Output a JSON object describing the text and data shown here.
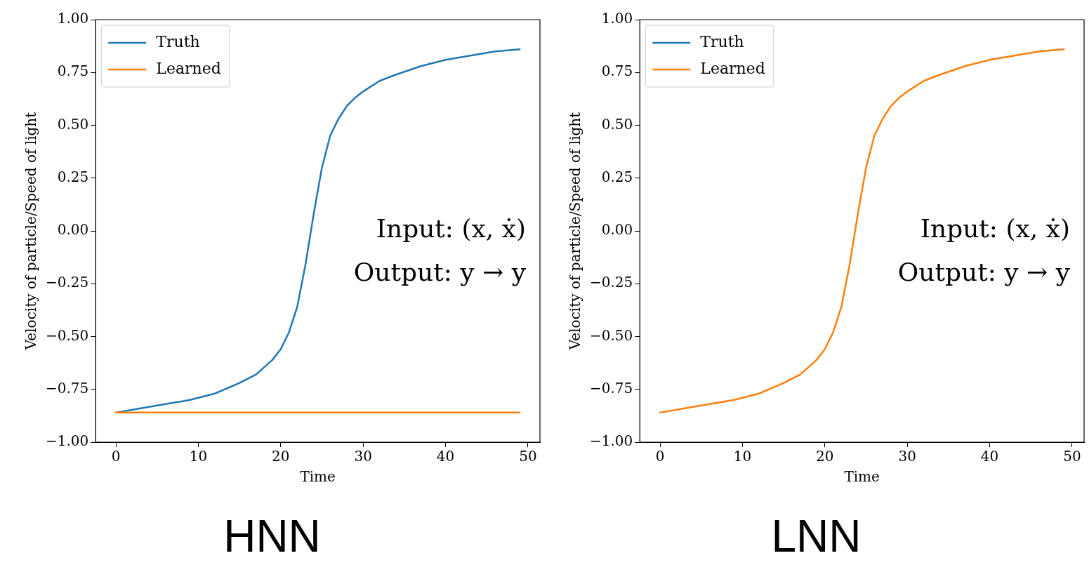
{
  "chart_data": [
    {
      "type": "line",
      "title": "HNN",
      "xlabel": "Time",
      "ylabel": "Velocity of particle/Speed of light",
      "annotations": [
        "Input: (x, ẋ)",
        "Output: y → y"
      ],
      "legend": "top left",
      "grid": false,
      "xlim": [
        -2.45,
        51.45
      ],
      "ylim": [
        -1,
        1
      ],
      "xticks": [
        0,
        10,
        20,
        30,
        40,
        50
      ],
      "yticks": [
        {
          "value": -1,
          "label": "−1.00"
        },
        {
          "value": -0.75,
          "label": "−0.75"
        },
        {
          "value": -0.5,
          "label": "−0.50"
        },
        {
          "value": -0.25,
          "label": "−0.25"
        },
        {
          "value": 0,
          "label": "0.00"
        },
        {
          "value": 0.25,
          "label": "0.25"
        },
        {
          "value": 0.5,
          "label": "0.50"
        },
        {
          "value": 0.75,
          "label": "0.75"
        },
        {
          "value": 1,
          "label": "1.00"
        }
      ],
      "series": [
        {
          "name": "Truth",
          "color": "#1f77b4",
          "x": [
            0,
            3,
            6,
            9,
            12,
            15,
            17,
            19,
            20,
            21,
            22,
            23,
            24,
            25,
            26,
            27,
            28,
            29,
            30,
            32,
            34,
            37,
            40,
            43,
            46,
            49
          ],
          "values": [
            -0.86,
            -0.84,
            -0.82,
            -0.8,
            -0.77,
            -0.72,
            -0.68,
            -0.61,
            -0.56,
            -0.48,
            -0.36,
            -0.16,
            0.08,
            0.3,
            0.45,
            0.53,
            0.59,
            0.63,
            0.66,
            0.71,
            0.74,
            0.78,
            0.81,
            0.83,
            0.85,
            0.86
          ]
        },
        {
          "name": "Learned",
          "color": "#ff7f0e",
          "x": [
            0,
            49
          ],
          "values": [
            -0.86,
            -0.86
          ]
        }
      ]
    },
    {
      "type": "line",
      "title": "LNN",
      "xlabel": "Time",
      "ylabel": "Velocity of particle/Speed of light",
      "annotations": [
        "Input: (x, ẋ)",
        "Output: y → y"
      ],
      "legend": "top left",
      "grid": false,
      "xlim": [
        -2.45,
        51.45
      ],
      "ylim": [
        -1,
        1
      ],
      "xticks": [
        0,
        10,
        20,
        30,
        40,
        50
      ],
      "yticks": [
        {
          "value": -1,
          "label": "−1.00"
        },
        {
          "value": -0.75,
          "label": "−0.75"
        },
        {
          "value": -0.5,
          "label": "−0.50"
        },
        {
          "value": -0.25,
          "label": "−0.25"
        },
        {
          "value": 0,
          "label": "0.00"
        },
        {
          "value": 0.25,
          "label": "0.25"
        },
        {
          "value": 0.5,
          "label": "0.50"
        },
        {
          "value": 0.75,
          "label": "0.75"
        },
        {
          "value": 1,
          "label": "1.00"
        }
      ],
      "series": [
        {
          "name": "Truth",
          "color": "#1f77b4"
        },
        {
          "name": "Learned",
          "color": "#ff7f0e",
          "x": [
            0,
            3,
            6,
            9,
            12,
            15,
            17,
            19,
            20,
            21,
            22,
            23,
            24,
            25,
            26,
            27,
            28,
            29,
            30,
            32,
            34,
            37,
            40,
            43,
            46,
            49
          ],
          "values": [
            -0.86,
            -0.84,
            -0.82,
            -0.8,
            -0.77,
            -0.72,
            -0.68,
            -0.61,
            -0.56,
            -0.48,
            -0.36,
            -0.16,
            0.08,
            0.3,
            0.45,
            0.53,
            0.59,
            0.63,
            0.66,
            0.71,
            0.74,
            0.78,
            0.81,
            0.83,
            0.85,
            0.86
          ]
        }
      ]
    }
  ]
}
